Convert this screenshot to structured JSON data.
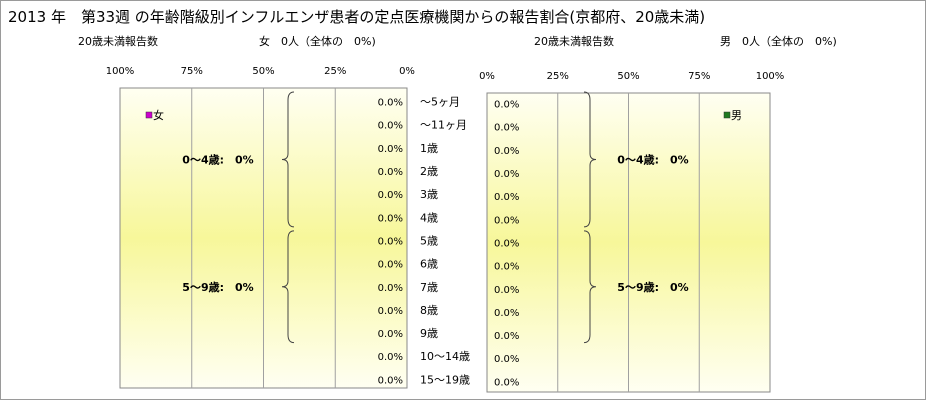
{
  "title": "2013 年　第33週 の年齢階級別インフルエンザ患者の定点医療機関からの報告割合(京都府、20歳未満)",
  "female_header": {
    "count_label": "20歳未満報告数",
    "summary": "女　0人（全体の　0%)"
  },
  "male_header": {
    "count_label": "20歳未満報告数",
    "summary": "男　0人（全体の　0%)"
  },
  "colors": {
    "plot_band_edge": "#fffff2",
    "plot_band_center": "#f7f79a",
    "grid": "#a0a0a0",
    "female": "#cc00cc",
    "male": "#1f7a1f"
  },
  "chart_data": [
    {
      "type": "bar",
      "orientation": "horizontal",
      "direction": "right-to-left",
      "categories": [
        "～5ヶ月",
        "～11ヶ月",
        "1歳",
        "2歳",
        "3歳",
        "4歳",
        "5歳",
        "6歳",
        "7歳",
        "8歳",
        "9歳",
        "10～14歳",
        "15～19歳"
      ],
      "series": [
        {
          "name": "女",
          "values": [
            0,
            0,
            0,
            0,
            0,
            0,
            0,
            0,
            0,
            0,
            0,
            0,
            0
          ],
          "labels": [
            "0.0%",
            "0.0%",
            "0.0%",
            "0.0%",
            "0.0%",
            "0.0%",
            "0.0%",
            "0.0%",
            "0.0%",
            "0.0%",
            "0.0%",
            "0.0%",
            "0.0%"
          ]
        }
      ],
      "xlim": [
        0,
        100
      ],
      "xticks": [
        "100%",
        "75%",
        "50%",
        "25%",
        "0%"
      ],
      "groups": [
        {
          "label": "0～4歳:　0%",
          "first": 0,
          "last": 5
        },
        {
          "label": "5～9歳:　0%",
          "first": 6,
          "last": 10
        }
      ],
      "legend": "top-left",
      "grid": true
    },
    {
      "type": "bar",
      "orientation": "horizontal",
      "direction": "left-to-right",
      "categories": [
        "～5ヶ月",
        "～11ヶ月",
        "1歳",
        "2歳",
        "3歳",
        "4歳",
        "5歳",
        "6歳",
        "7歳",
        "8歳",
        "9歳",
        "10～14歳",
        "15～19歳"
      ],
      "series": [
        {
          "name": "男",
          "values": [
            0,
            0,
            0,
            0,
            0,
            0,
            0,
            0,
            0,
            0,
            0,
            0,
            0
          ],
          "labels": [
            "0.0%",
            "0.0%",
            "0.0%",
            "0.0%",
            "0.0%",
            "0.0%",
            "0.0%",
            "0.0%",
            "0.0%",
            "0.0%",
            "0.0%",
            "0.0%",
            "0.0%"
          ]
        }
      ],
      "xlim": [
        0,
        100
      ],
      "xticks": [
        "0%",
        "25%",
        "50%",
        "75%",
        "100%"
      ],
      "groups": [
        {
          "label": "0～4歳:　0%",
          "first": 0,
          "last": 5
        },
        {
          "label": "5～9歳:　0%",
          "first": 6,
          "last": 10
        }
      ],
      "legend": "top-right",
      "grid": true
    }
  ]
}
